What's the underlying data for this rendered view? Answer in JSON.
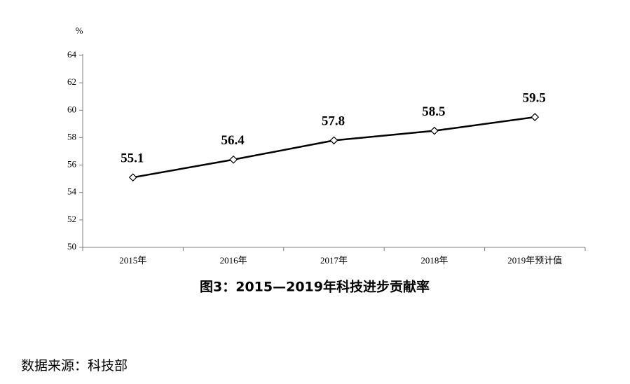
{
  "chart_data": {
    "type": "line",
    "title": "图3：2015—2019年科技进步贡献率",
    "unit": "%",
    "categories": [
      "2015年",
      "2016年",
      "2017年",
      "2018年",
      "2019年预计值"
    ],
    "values": [
      55.1,
      56.4,
      57.8,
      58.5,
      59.5
    ],
    "color": "#000000",
    "ylim": [
      50,
      64
    ],
    "yticks": [
      50,
      52,
      54,
      56,
      58,
      60,
      62,
      64
    ],
    "source": "数据来源：科技部"
  }
}
